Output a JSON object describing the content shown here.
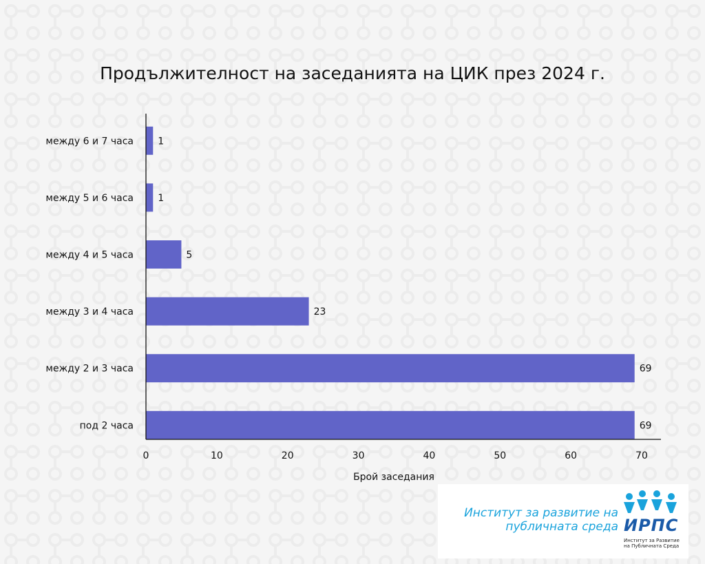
{
  "chart_data": {
    "type": "bar",
    "orientation": "horizontal",
    "title": "Продължителност на заседанията на ЦИК през 2024 г.",
    "xlabel": "Брой заседания",
    "ylabel": "",
    "categories": [
      "между 6 и 7 часа",
      "между 5 и 6 часа",
      "между 4 и 5 часа",
      "между 3 и 4 часа",
      "между 2 и 3 часа",
      "под 2 часа"
    ],
    "values": [
      1,
      1,
      5,
      23,
      69,
      69
    ],
    "xlim": [
      0,
      70
    ],
    "xticks": [
      0,
      10,
      20,
      30,
      40,
      50,
      60,
      70
    ],
    "grid": false,
    "legend": "none",
    "bar_color": "#6164c8"
  },
  "logo": {
    "text_line1": "Институт за развитие на",
    "text_line2": "публичната среда",
    "abbr": "ИРПС",
    "sub_line1": "Институт за Развитие",
    "sub_line2": "на Публичната Среда",
    "text_color": "#1aa3dc",
    "icon": "people-circle-icon"
  }
}
